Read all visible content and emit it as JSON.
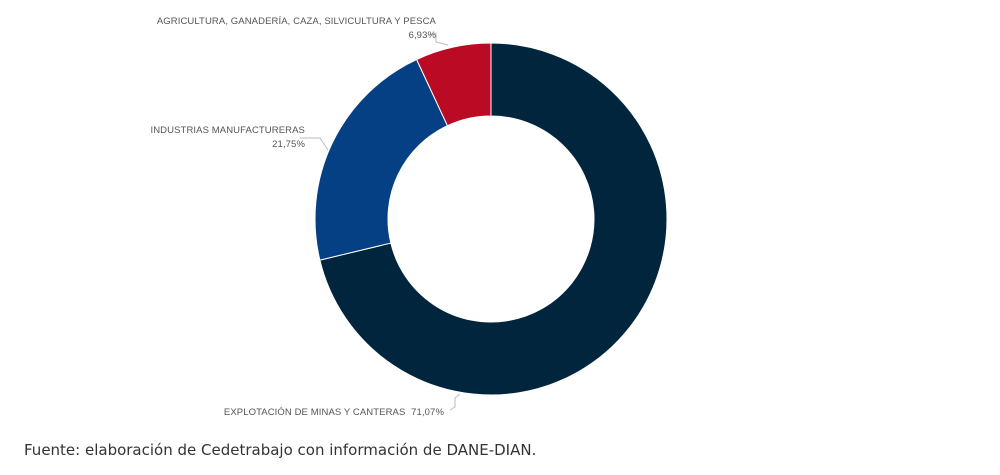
{
  "chart_data": {
    "type": "pie",
    "donut": true,
    "slices": [
      {
        "category": "EXPLOTACIÓN DE MINAS Y CANTERAS",
        "value": 71.07,
        "value_label": "71,07%",
        "color": "#00253d"
      },
      {
        "category": "INDUSTRIAS MANUFACTURERAS",
        "value": 21.75,
        "value_label": "21,75%",
        "color": "#053f84"
      },
      {
        "category": "AGRICULTURA, GANADERÍA, CAZA, SILVICULTURA Y PESCA",
        "value": 6.93,
        "value_label": "6,93%",
        "color": "#bb0a24"
      }
    ],
    "legend": "none"
  },
  "source_note": "Fuente: elaboración de Cedetrabajo con información de DANE-DIAN."
}
